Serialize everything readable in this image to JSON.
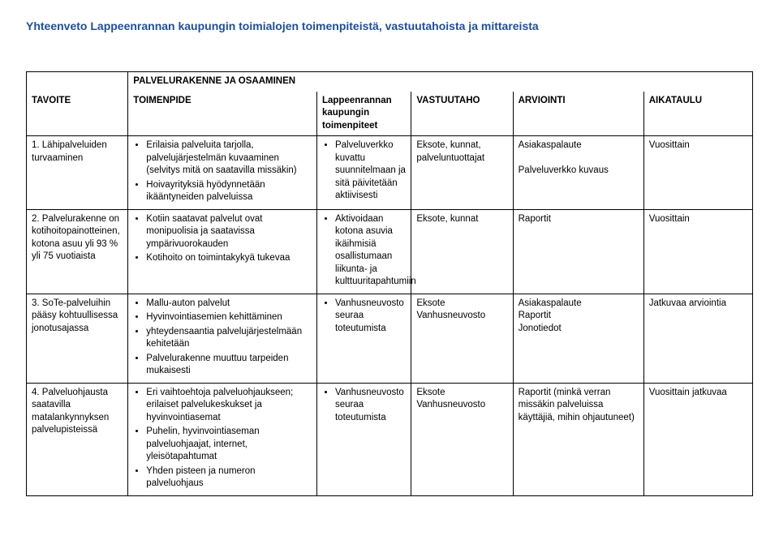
{
  "title": "Yhteenveto Lappeenrannan kaupungin toimialojen toimenpiteistä, vastuutahoista ja mittareista",
  "section_title": "PALVELURAKENNE JA OSAAMINEN",
  "headers": {
    "c1": "TAVOITE",
    "c2": "TOIMENPIDE",
    "c3": "Lappeenrannan kaupungin toimenpiteet",
    "c4": "VASTUUTAHO",
    "c5": "ARVIOINTI",
    "c6": "AIKATAULU"
  },
  "rows": [
    {
      "tavoite": "1. Lähipalveluiden turvaaminen",
      "toimenpide": [
        "Erilaisia palveluita tarjolla, palvelujärjestelmän kuvaaminen (selvitys mitä on saatavilla missäkin)",
        "Hoivayrityksiä hyödynnetään ikääntyneiden palveluissa"
      ],
      "lpr": [
        "Palveluverkko kuvattu suunnitelmaan ja sitä päivitetään aktiivisesti"
      ],
      "vastuu": "Eksote, kunnat, palveluntuottajat",
      "arviointi_lines": [
        "Asiakaspalaute",
        "",
        "Palveluverkko kuvaus"
      ],
      "aika": "Vuosittain"
    },
    {
      "tavoite": "2. Palvelurakenne on kotihoitopainotteinen, kotona asuu yli 93 % yli 75 vuotiaista",
      "toimenpide": [
        "Kotiin saatavat palvelut ovat monipuolisia ja saatavissa ympärivuorokauden",
        "Kotihoito on toimintakykyä tukevaa"
      ],
      "lpr": [
        "Aktivoidaan kotona asuvia ikäihmisiä osallistumaan liikunta- ja kulttuuritapahtumiin"
      ],
      "vastuu": "Eksote, kunnat",
      "arviointi_lines": [
        "Raportit"
      ],
      "aika": "Vuosittain"
    },
    {
      "tavoite": "3. SoTe-palveluihin pääsy kohtuullisessa jonotusajassa",
      "toimenpide": [
        "Mallu-auton palvelut",
        "Hyvinvointiasemien kehittäminen",
        "yhteydensaantia palvelujärjestelmään kehitetään",
        "Palvelurakenne muuttuu tarpeiden mukaisesti"
      ],
      "lpr": [
        "Vanhusneuvosto seuraa toteutumista"
      ],
      "vastuu": "Eksote Vanhusneuvosto",
      "arviointi_lines": [
        "Asiakaspalaute",
        "Raportit",
        "Jonotiedot"
      ],
      "aika": "Jatkuvaa arviointia"
    },
    {
      "tavoite": "4. Palveluohjausta saatavilla matalankynnyksen palvelupisteissä",
      "toimenpide": [
        "Eri vaihtoehtoja palveluohjaukseen; erilaiset palvelukeskukset ja hyvinvointiasemat",
        "Puhelin, hyvinvointiaseman palveluohjaajat, internet, yleisötapahtumat",
        "Yhden pisteen ja numeron palveluohjaus"
      ],
      "lpr": [
        "Vanhusneuvosto seuraa toteutumista"
      ],
      "vastuu": "Eksote Vanhusneuvosto",
      "arviointi_lines": [
        "Raportit (minkä verran missäkin palveluissa käyttäjiä, mihin ohjautuneet)"
      ],
      "aika": "Vuosittain jatkuvaa"
    }
  ]
}
